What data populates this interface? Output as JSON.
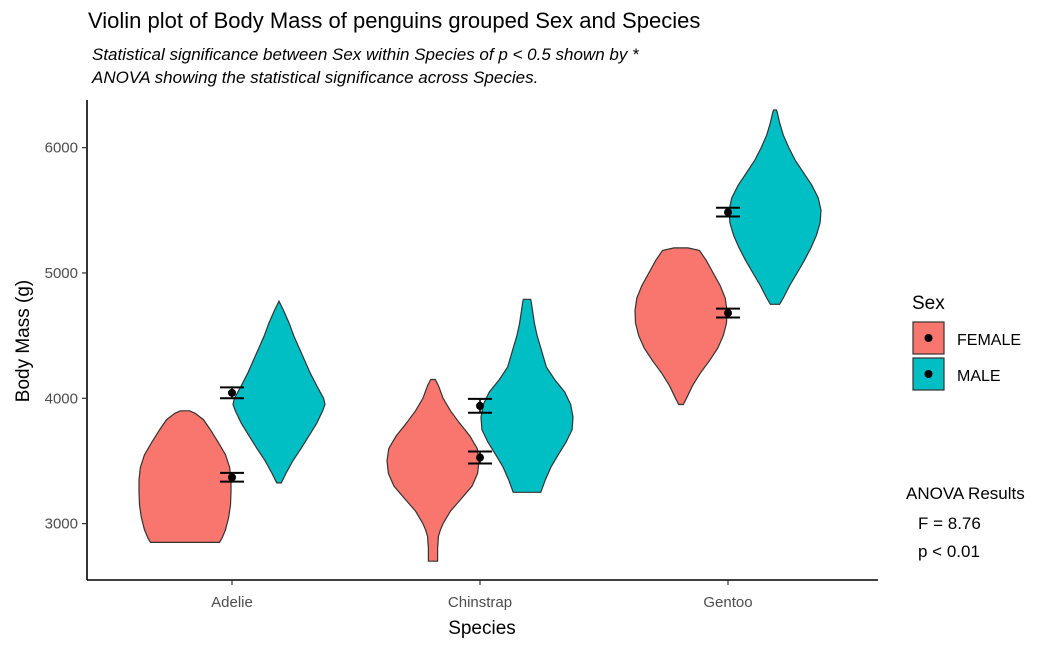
{
  "chart_data": {
    "type": "violin",
    "title": "Violin plot of Body Mass of penguins grouped Sex and Species",
    "subtitle_lines": [
      "Statistical significance between Sex within Species of p < 0.5 shown by *",
      "ANOVA showing the statistical significance across Species."
    ],
    "xlabel": "Species",
    "ylabel": "Body Mass (g)",
    "categories": [
      "Adelie",
      "Chinstrap",
      "Gentoo"
    ],
    "ylim": [
      2550,
      6380
    ],
    "yticks": [
      3000,
      4000,
      5000,
      6000
    ],
    "grid": false,
    "legend": {
      "title": "Sex",
      "position": "right",
      "entries": [
        {
          "name": "FEMALE",
          "color": "#F8766D"
        },
        {
          "name": "MALE",
          "color": "#00BFC4"
        }
      ]
    },
    "series": [
      {
        "name": "FEMALE",
        "color": "#F8766D",
        "violins": [
          {
            "category": "Adelie",
            "profile": [
              [
                2850,
                0.75
              ],
              [
                2880,
                0.8
              ],
              [
                2950,
                0.88
              ],
              [
                3050,
                0.95
              ],
              [
                3150,
                0.99
              ],
              [
                3250,
                1.0
              ],
              [
                3350,
                1.0
              ],
              [
                3450,
                0.97
              ],
              [
                3550,
                0.88
              ],
              [
                3650,
                0.72
              ],
              [
                3750,
                0.55
              ],
              [
                3830,
                0.4
              ],
              [
                3880,
                0.22
              ],
              [
                3900,
                0.1
              ]
            ]
          },
          {
            "category": "Chinstrap",
            "profile": [
              [
                2700,
                0.1
              ],
              [
                2720,
                0.1
              ],
              [
                2800,
                0.1
              ],
              [
                2900,
                0.12
              ],
              [
                2950,
                0.16
              ],
              [
                3000,
                0.22
              ],
              [
                3050,
                0.3
              ],
              [
                3100,
                0.38
              ],
              [
                3200,
                0.62
              ],
              [
                3300,
                0.85
              ],
              [
                3400,
                0.97
              ],
              [
                3500,
                1.0
              ],
              [
                3600,
                0.96
              ],
              [
                3700,
                0.8
              ],
              [
                3800,
                0.58
              ],
              [
                3900,
                0.38
              ],
              [
                4000,
                0.22
              ],
              [
                4100,
                0.12
              ],
              [
                4150,
                0.05
              ]
            ]
          },
          {
            "category": "Gentoo",
            "profile": [
              [
                3950,
                0.05
              ],
              [
                4000,
                0.12
              ],
              [
                4100,
                0.25
              ],
              [
                4200,
                0.42
              ],
              [
                4300,
                0.62
              ],
              [
                4400,
                0.8
              ],
              [
                4500,
                0.92
              ],
              [
                4600,
                0.99
              ],
              [
                4700,
                1.0
              ],
              [
                4800,
                0.96
              ],
              [
                4900,
                0.85
              ],
              [
                5000,
                0.7
              ],
              [
                5100,
                0.55
              ],
              [
                5180,
                0.4
              ],
              [
                5200,
                0.15
              ]
            ]
          }
        ],
        "means": [
          {
            "category": "Adelie",
            "mean": 3368.8,
            "ci": [
              3335,
              3405
            ]
          },
          {
            "category": "Chinstrap",
            "mean": 3527.2,
            "ci": [
              3480,
              3575
            ]
          },
          {
            "category": "Gentoo",
            "mean": 4679.7,
            "ci": [
              4645,
              4715
            ]
          }
        ]
      },
      {
        "name": "MALE",
        "color": "#00BFC4",
        "violins": [
          {
            "category": "Adelie",
            "profile": [
              [
                3325,
                0.05
              ],
              [
                3400,
                0.15
              ],
              [
                3500,
                0.3
              ],
              [
                3600,
                0.48
              ],
              [
                3700,
                0.65
              ],
              [
                3800,
                0.82
              ],
              [
                3900,
                0.95
              ],
              [
                3950,
                1.0
              ],
              [
                4000,
                0.97
              ],
              [
                4100,
                0.82
              ],
              [
                4200,
                0.68
              ],
              [
                4300,
                0.56
              ],
              [
                4400,
                0.44
              ],
              [
                4500,
                0.32
              ],
              [
                4600,
                0.22
              ],
              [
                4700,
                0.1
              ],
              [
                4760,
                0.02
              ],
              [
                4775,
                0.0
              ]
            ]
          },
          {
            "category": "Chinstrap",
            "profile": [
              [
                3250,
                0.3
              ],
              [
                3270,
                0.32
              ],
              [
                3350,
                0.4
              ],
              [
                3450,
                0.52
              ],
              [
                3550,
                0.68
              ],
              [
                3650,
                0.85
              ],
              [
                3750,
                0.98
              ],
              [
                3850,
                1.0
              ],
              [
                3950,
                0.95
              ],
              [
                4050,
                0.82
              ],
              [
                4150,
                0.6
              ],
              [
                4250,
                0.42
              ],
              [
                4400,
                0.3
              ],
              [
                4500,
                0.22
              ],
              [
                4600,
                0.16
              ],
              [
                4700,
                0.12
              ],
              [
                4750,
                0.1
              ],
              [
                4790,
                0.08
              ]
            ]
          },
          {
            "category": "Gentoo",
            "profile": [
              [
                4750,
                0.1
              ],
              [
                4800,
                0.18
              ],
              [
                4900,
                0.32
              ],
              [
                5000,
                0.48
              ],
              [
                5100,
                0.64
              ],
              [
                5200,
                0.78
              ],
              [
                5300,
                0.9
              ],
              [
                5400,
                0.98
              ],
              [
                5500,
                1.0
              ],
              [
                5600,
                0.94
              ],
              [
                5700,
                0.8
              ],
              [
                5800,
                0.62
              ],
              [
                5900,
                0.44
              ],
              [
                6000,
                0.3
              ],
              [
                6100,
                0.18
              ],
              [
                6200,
                0.1
              ],
              [
                6280,
                0.05
              ],
              [
                6300,
                0.03
              ]
            ]
          }
        ],
        "means": [
          {
            "category": "Adelie",
            "mean": 4043.5,
            "ci": [
              4000,
              4087
            ]
          },
          {
            "category": "Chinstrap",
            "mean": 3939.0,
            "ci": [
              3885,
              3995
            ]
          },
          {
            "category": "Gentoo",
            "mean": 5484.8,
            "ci": [
              5450,
              5520
            ]
          }
        ]
      }
    ],
    "annotations": {
      "anova_title": "ANOVA Results",
      "anova_f": "F = 8.76",
      "anova_p": "p < 0.01"
    },
    "colors": {
      "female": "#F8766D",
      "male": "#00BFC4",
      "outline": "#333333"
    }
  }
}
